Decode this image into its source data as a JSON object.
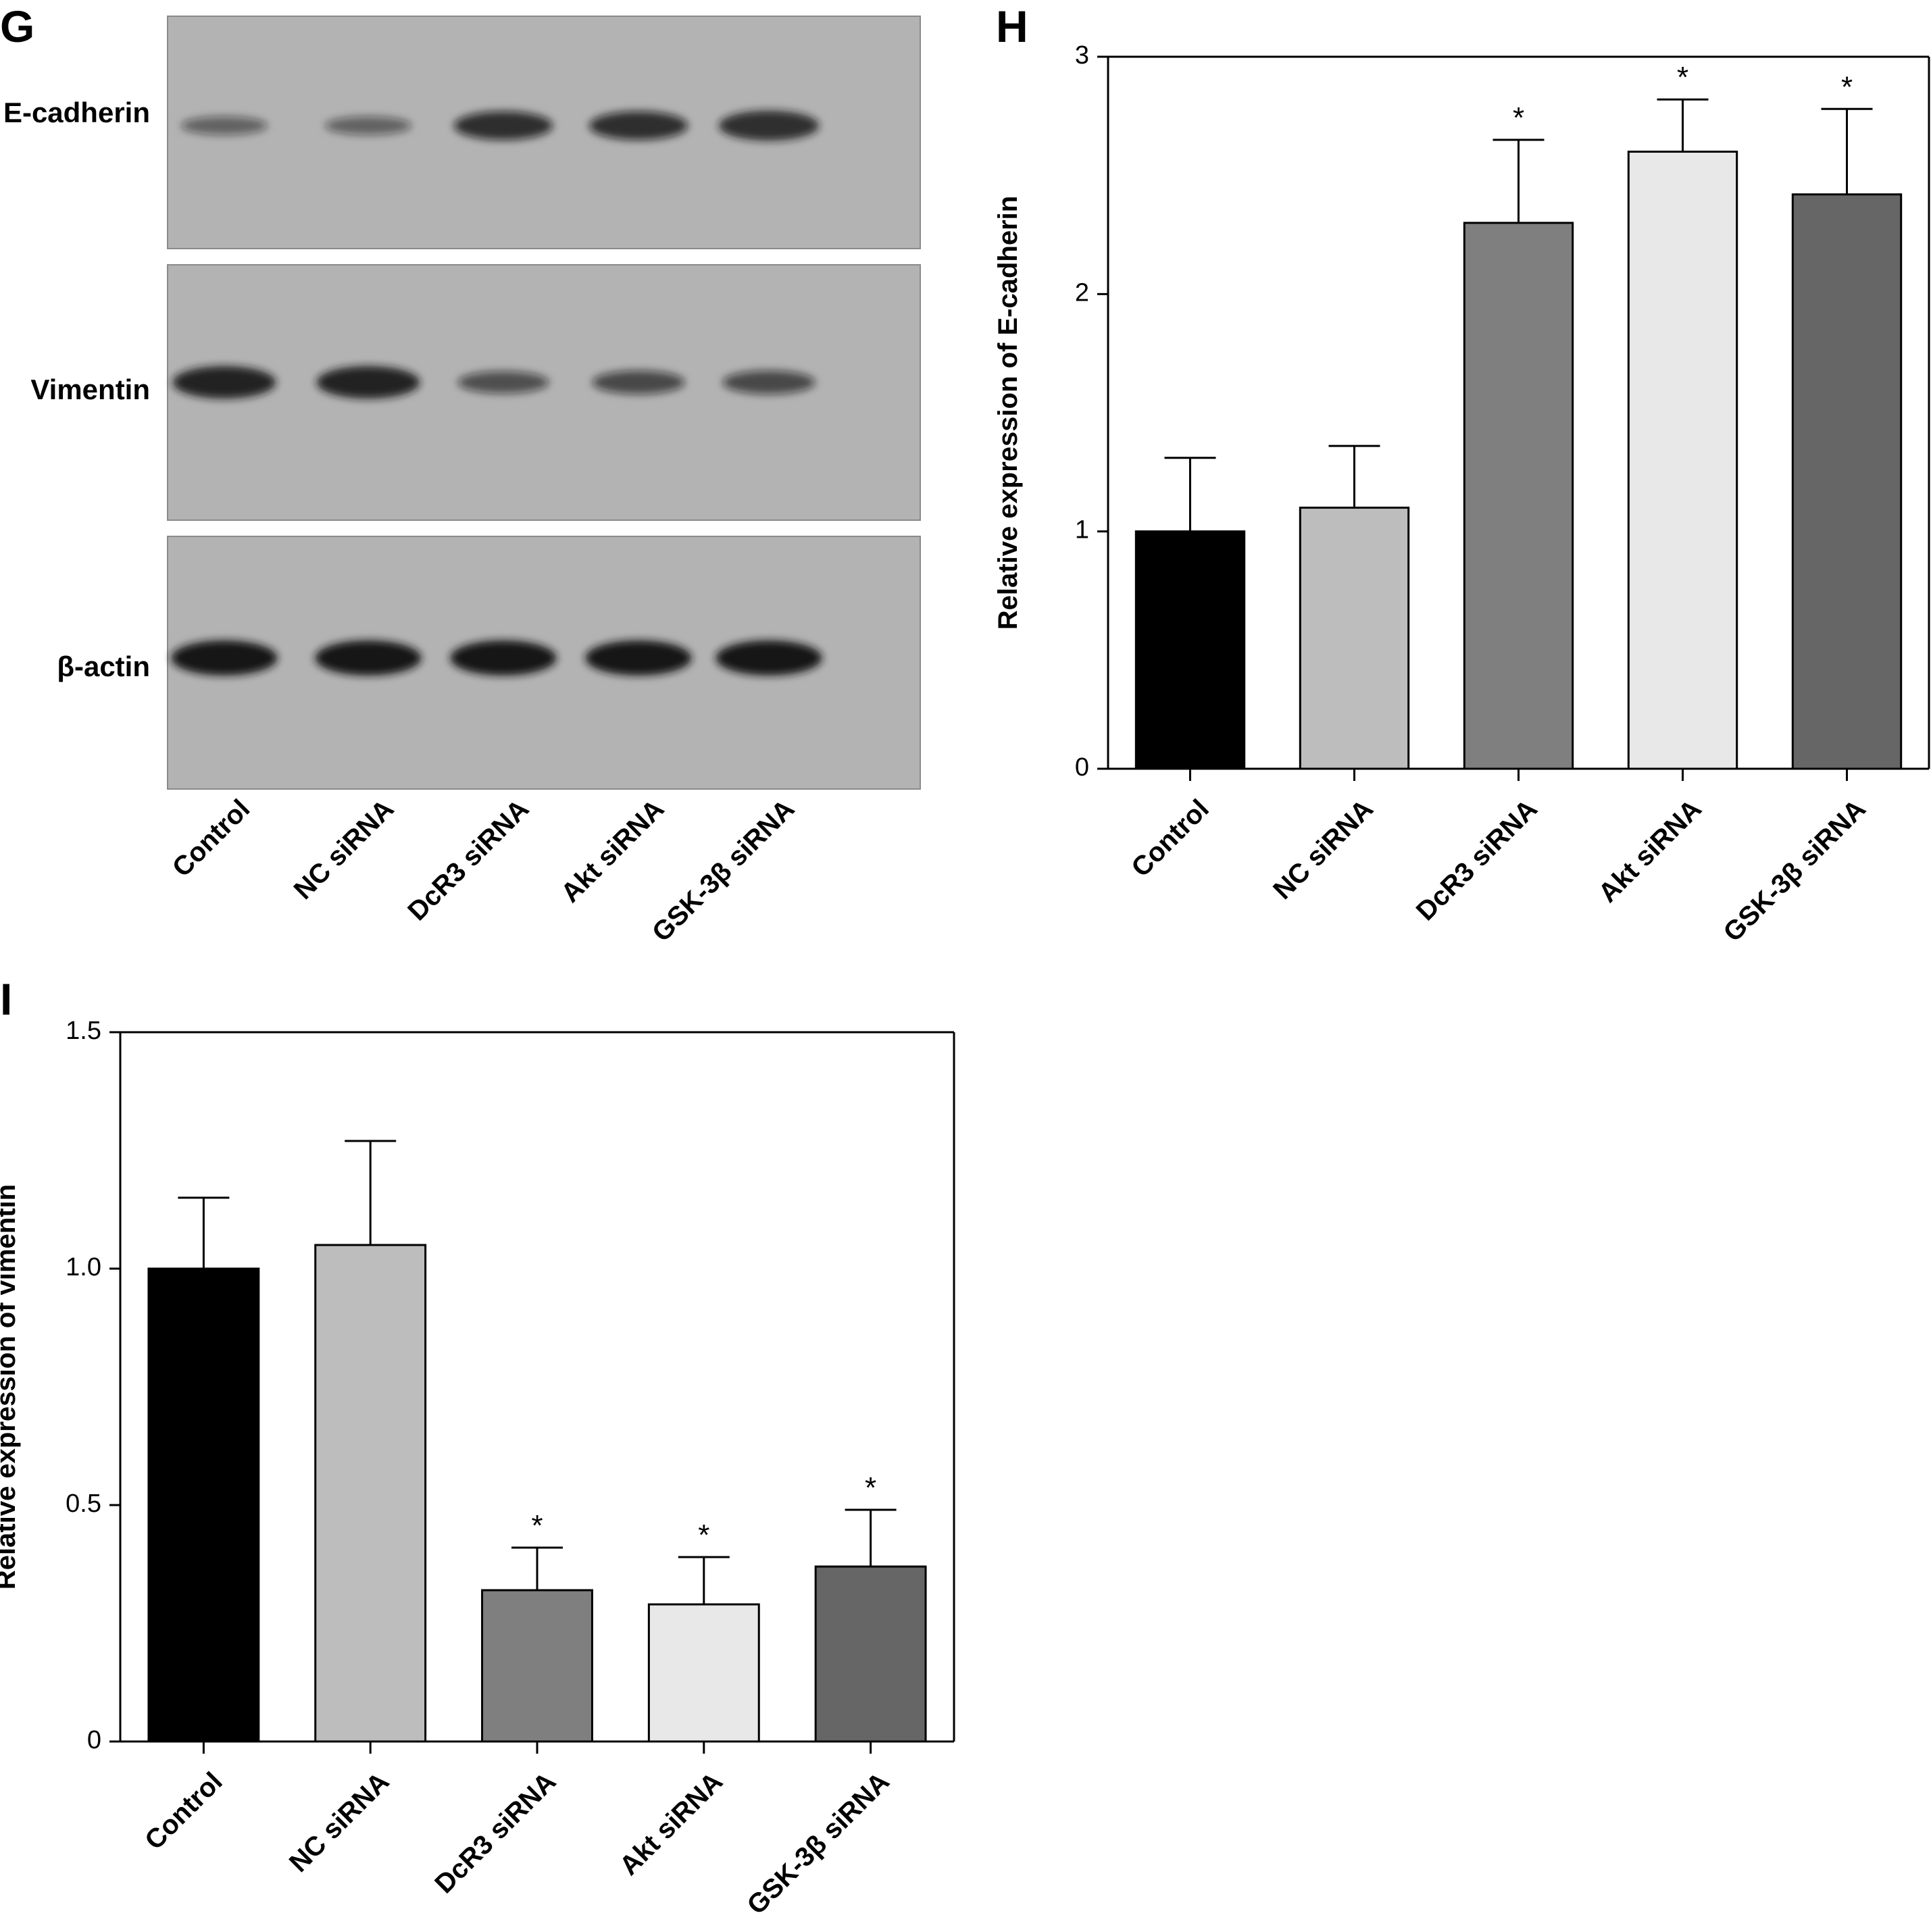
{
  "panels": {
    "G": {
      "letter": "G",
      "band_labels": [
        "E-cadherin",
        "Vimentin",
        "β-actin"
      ],
      "lanes": [
        "Control",
        "NC siRNA",
        "DcR3 siRNA",
        "Akt siRNA",
        "GSK-3β siRNA"
      ],
      "band_intensity": {
        "E-cadherin": [
          0.35,
          0.35,
          0.75,
          0.75,
          0.8
        ],
        "Vimentin": [
          0.9,
          0.9,
          0.5,
          0.55,
          0.55
        ],
        "β-actin": [
          1.0,
          1.0,
          1.0,
          1.0,
          1.0
        ]
      }
    },
    "H": {
      "letter": "H"
    },
    "I": {
      "letter": "I"
    }
  },
  "colors": {
    "bars": [
      "#000000",
      "#bdbdbd",
      "#7f7f7f",
      "#e8e8e8",
      "#666666"
    ],
    "blot_bg": "#b3b3b3",
    "band": "#141414"
  },
  "chart_data": [
    {
      "panel": "H",
      "type": "bar",
      "categories": [
        "Control",
        "NC siRNA",
        "DcR3 siRNA",
        "Akt siRNA",
        "GSK-3β siRNA"
      ],
      "values": [
        1.0,
        1.1,
        2.3,
        2.6,
        2.42
      ],
      "errors": [
        0.31,
        0.26,
        0.35,
        0.22,
        0.36
      ],
      "significance": [
        "",
        "",
        "*",
        "*",
        "*"
      ],
      "ylabel": "Relative expression of E-cadherin",
      "ylim": [
        0,
        3
      ],
      "yticks": [
        "0",
        "1",
        "2",
        "3"
      ],
      "grid": false
    },
    {
      "panel": "I",
      "type": "bar",
      "categories": [
        "Control",
        "NC siRNA",
        "DcR3 siRNA",
        "Akt siRNA",
        "GSK-3β siRNA"
      ],
      "values": [
        1.0,
        1.05,
        0.32,
        0.29,
        0.37
      ],
      "errors": [
        0.15,
        0.22,
        0.09,
        0.1,
        0.12
      ],
      "significance": [
        "",
        "",
        "*",
        "*",
        "*"
      ],
      "ylabel": "Relative expression of vimentin",
      "ylim": [
        0,
        1.5
      ],
      "yticks": [
        "0",
        "0.5",
        "1.0",
        "1.5"
      ],
      "grid": false
    }
  ]
}
